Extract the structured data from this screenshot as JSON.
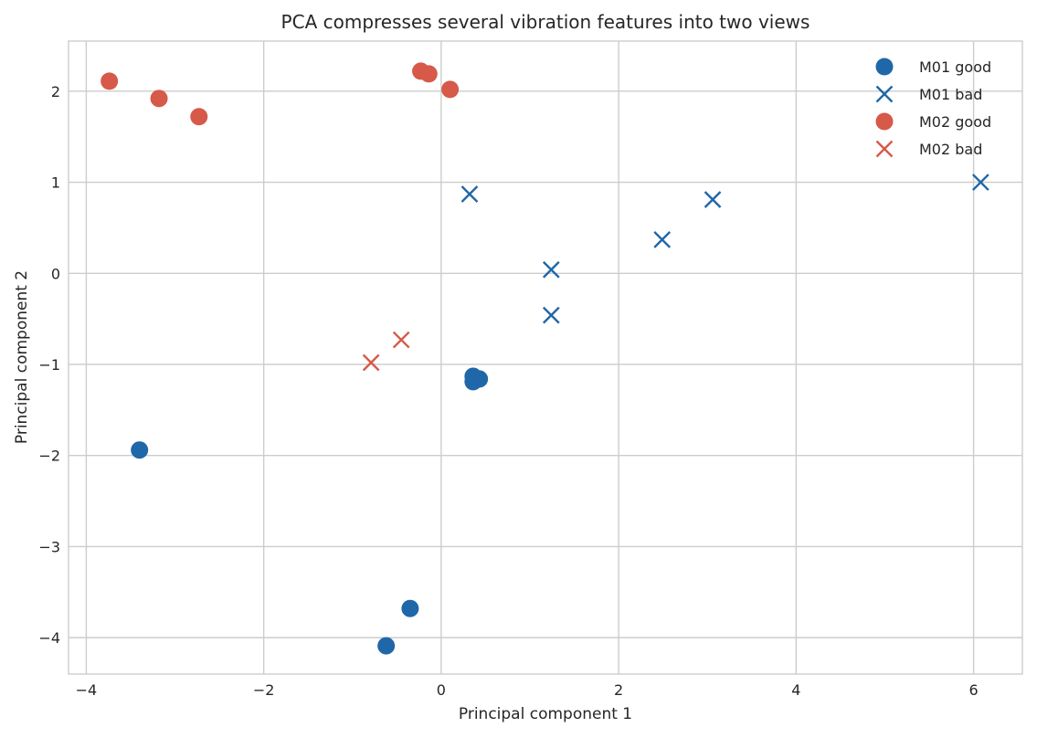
{
  "chart_data": {
    "type": "scatter",
    "title": "PCA compresses several vibration features into two views",
    "xlabel": "Principal component 1",
    "ylabel": "Principal component 2",
    "xlim": [
      -4.2,
      6.55
    ],
    "ylim": [
      -4.4,
      2.55
    ],
    "xticks": [
      -4,
      -2,
      0,
      2,
      4,
      6
    ],
    "yticks": [
      -4,
      -3,
      -2,
      -1,
      0,
      1,
      2
    ],
    "xtick_labels": [
      "−4",
      "−2",
      "0",
      "2",
      "4",
      "6"
    ],
    "ytick_labels": [
      "−4",
      "−3",
      "−2",
      "−1",
      "0",
      "1",
      "2"
    ],
    "grid": true,
    "legend_position": "top-right",
    "series": [
      {
        "name": "M01 good",
        "marker": "circle",
        "color": "#1f67a8",
        "points": [
          [
            -3.4,
            -1.94
          ],
          [
            -0.35,
            -3.68
          ],
          [
            -0.62,
            -4.09
          ],
          [
            0.36,
            -1.13
          ],
          [
            0.36,
            -1.19
          ],
          [
            0.43,
            -1.16
          ]
        ]
      },
      {
        "name": "M01 bad",
        "marker": "x",
        "color": "#1f67a8",
        "points": [
          [
            0.32,
            0.87
          ],
          [
            1.24,
            0.04
          ],
          [
            1.24,
            -0.46
          ],
          [
            2.49,
            0.37
          ],
          [
            3.06,
            0.81
          ],
          [
            6.08,
            1.0
          ]
        ]
      },
      {
        "name": "M02 good",
        "marker": "circle",
        "color": "#d6594a",
        "points": [
          [
            -3.74,
            2.11
          ],
          [
            -3.18,
            1.92
          ],
          [
            -2.73,
            1.72
          ],
          [
            -0.23,
            2.22
          ],
          [
            -0.14,
            2.19
          ],
          [
            0.1,
            2.02
          ]
        ]
      },
      {
        "name": "M02 bad",
        "marker": "x",
        "color": "#d6594a",
        "points": [
          [
            -0.79,
            -0.98
          ],
          [
            -0.45,
            -0.73
          ]
        ]
      }
    ]
  }
}
